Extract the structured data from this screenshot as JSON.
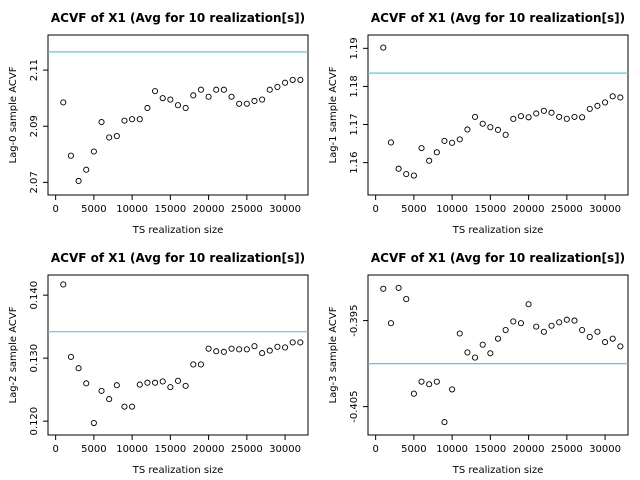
{
  "chart_data": [
    {
      "type": "scatter",
      "title": "ACVF of X1 (Avg for 10 realization[s])",
      "xlabel": "TS realization size",
      "ylabel": "Lag-0 sample ACVF",
      "xlim": [
        -1000,
        33000
      ],
      "ylim": [
        2.0655,
        2.1225
      ],
      "xticks": [
        0,
        5000,
        10000,
        15000,
        20000,
        25000,
        30000
      ],
      "yticks": [
        2.07,
        2.09,
        2.11
      ],
      "yticklabels": [
        "2.07",
        "2.09",
        "2.11"
      ],
      "reference_line": 2.1165,
      "x": [
        1000,
        2000,
        3000,
        4000,
        5000,
        6000,
        7000,
        8000,
        9000,
        10000,
        11000,
        12000,
        13000,
        14000,
        15000,
        16000,
        17000,
        18000,
        19000,
        20000,
        21000,
        22000,
        23000,
        24000,
        25000,
        26000,
        27000,
        28000,
        29000,
        30000,
        31000,
        32000
      ],
      "y": [
        2.0985,
        2.0795,
        2.0705,
        2.0745,
        2.081,
        2.0915,
        2.086,
        2.0865,
        2.092,
        2.0925,
        2.0925,
        2.0965,
        2.1025,
        2.1,
        2.0995,
        2.0975,
        2.0965,
        2.101,
        2.103,
        2.1005,
        2.103,
        2.103,
        2.1005,
        2.098,
        2.098,
        2.099,
        2.0995,
        2.103,
        2.104,
        2.1055,
        2.1065,
        2.1065
      ]
    },
    {
      "type": "scatter",
      "title": "ACVF of X1 (Avg for 10 realization[s])",
      "xlabel": "TS realization size",
      "ylabel": "Lag-1 sample ACVF",
      "xlim": [
        -1000,
        33000
      ],
      "ylim": [
        1.1515,
        1.1935
      ],
      "xticks": [
        0,
        5000,
        10000,
        15000,
        20000,
        25000,
        30000
      ],
      "yticks": [
        1.16,
        1.17,
        1.18,
        1.19
      ],
      "yticklabels": [
        "1.16",
        "1.17",
        "1.18",
        "1.19"
      ],
      "reference_line": 1.1835,
      "x": [
        1000,
        2000,
        3000,
        4000,
        5000,
        6000,
        7000,
        8000,
        9000,
        10000,
        11000,
        12000,
        13000,
        14000,
        15000,
        16000,
        17000,
        18000,
        19000,
        20000,
        21000,
        22000,
        23000,
        24000,
        25000,
        26000,
        27000,
        28000,
        29000,
        30000,
        31000,
        32000
      ],
      "y": [
        1.1902,
        1.1653,
        1.1584,
        1.157,
        1.1566,
        1.1638,
        1.1605,
        1.1627,
        1.1657,
        1.1652,
        1.1661,
        1.1687,
        1.172,
        1.1702,
        1.1693,
        1.1686,
        1.1673,
        1.1715,
        1.1722,
        1.1719,
        1.1729,
        1.1736,
        1.1731,
        1.172,
        1.1715,
        1.172,
        1.1719,
        1.1741,
        1.1749,
        1.1758,
        1.1774,
        1.1771
      ]
    },
    {
      "type": "scatter",
      "title": "ACVF of X1 (Avg for 10 realization[s])",
      "xlabel": "TS realization size",
      "ylabel": "Lag-2 sample ACVF",
      "xlim": [
        -1000,
        33000
      ],
      "ylim": [
        0.1178,
        0.1432
      ],
      "xticks": [
        0,
        5000,
        10000,
        15000,
        20000,
        25000,
        30000
      ],
      "yticks": [
        0.12,
        0.13,
        0.14
      ],
      "yticklabels": [
        "0.120",
        "0.130",
        "0.140"
      ],
      "reference_line": 0.1342,
      "x": [
        1000,
        2000,
        3000,
        4000,
        5000,
        6000,
        7000,
        8000,
        9000,
        10000,
        11000,
        12000,
        13000,
        14000,
        15000,
        16000,
        17000,
        18000,
        19000,
        20000,
        21000,
        22000,
        23000,
        24000,
        25000,
        26000,
        27000,
        28000,
        29000,
        30000,
        31000,
        32000
      ],
      "y": [
        0.1417,
        0.1302,
        0.1284,
        0.126,
        0.1197,
        0.1248,
        0.1235,
        0.1257,
        0.1223,
        0.1223,
        0.1258,
        0.1261,
        0.1261,
        0.1263,
        0.1254,
        0.1264,
        0.1256,
        0.129,
        0.129,
        0.1315,
        0.1311,
        0.131,
        0.1315,
        0.1314,
        0.1314,
        0.1319,
        0.1308,
        0.1312,
        0.1318,
        0.1317,
        0.1325,
        0.1325
      ]
    },
    {
      "type": "scatter",
      "title": "ACVF of X1 (Avg for 10 realization[s])",
      "xlabel": "TS realization size",
      "ylabel": "Lag-3 sample ACVF",
      "xlim": [
        -1000,
        33000
      ],
      "ylim": [
        -0.4083,
        -0.3897
      ],
      "xticks": [
        0,
        5000,
        10000,
        15000,
        20000,
        25000,
        30000
      ],
      "yticks": [
        -0.405,
        -0.395
      ],
      "yticklabels": [
        "-0.405",
        "-0.395"
      ],
      "reference_line": -0.4,
      "x": [
        1000,
        2000,
        3000,
        4000,
        5000,
        6000,
        7000,
        8000,
        9000,
        10000,
        11000,
        12000,
        13000,
        14000,
        15000,
        16000,
        17000,
        18000,
        19000,
        20000,
        21000,
        22000,
        23000,
        24000,
        25000,
        26000,
        27000,
        28000,
        29000,
        30000,
        31000,
        32000
      ],
      "y": [
        -0.3913,
        -0.3953,
        -0.3912,
        -0.3925,
        -0.4035,
        -0.4021,
        -0.4024,
        -0.4021,
        -0.4068,
        -0.403,
        -0.3965,
        -0.3987,
        -0.3993,
        -0.3978,
        -0.3988,
        -0.3971,
        -0.3961,
        -0.3951,
        -0.3953,
        -0.3931,
        -0.3957,
        -0.3963,
        -0.3956,
        -0.3952,
        -0.3949,
        -0.395,
        -0.3961,
        -0.3969,
        -0.3963,
        -0.3975,
        -0.3971,
        -0.398
      ]
    }
  ]
}
